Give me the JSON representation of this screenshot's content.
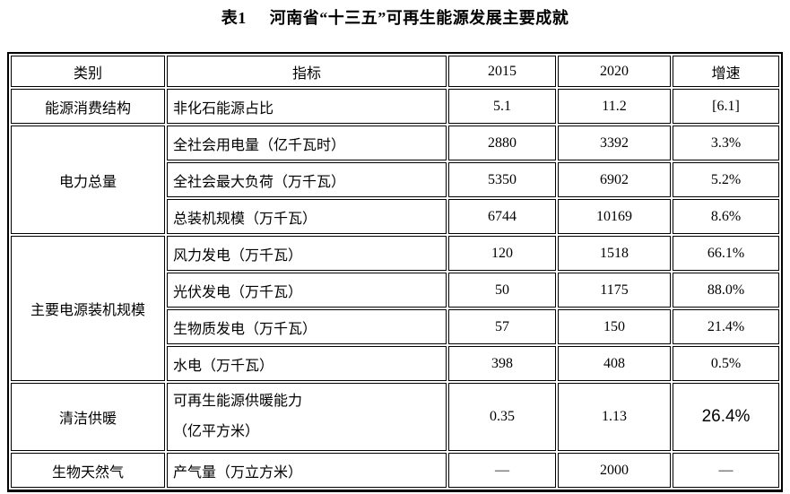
{
  "title": {
    "label": "表1",
    "text": "河南省“十三五”可再生能源发展主要成就"
  },
  "colors": {
    "text": "#000000",
    "border": "#000000",
    "background": "#ffffff"
  },
  "table": {
    "headers": [
      "类别",
      "指标",
      "2015",
      "2020",
      "增速"
    ],
    "groups": [
      {
        "category": "能源消费结构",
        "rows": [
          {
            "indicator": "非化石能源占比",
            "y2015": "5.1",
            "y2020": "11.2",
            "growth": "[6.1]"
          }
        ]
      },
      {
        "category": "电力总量",
        "rows": [
          {
            "indicator": "全社会用电量（亿千瓦时）",
            "y2015": "2880",
            "y2020": "3392",
            "growth": "3.3%"
          },
          {
            "indicator": "全社会最大负荷（万千瓦）",
            "y2015": "5350",
            "y2020": "6902",
            "growth": "5.2%"
          },
          {
            "indicator": "总装机规模（万千瓦）",
            "y2015": "6744",
            "y2020": "10169",
            "growth": "8.6%"
          }
        ]
      },
      {
        "category": "主要电源装机规模",
        "rows": [
          {
            "indicator": "风力发电（万千瓦）",
            "y2015": "120",
            "y2020": "1518",
            "growth": "66.1%"
          },
          {
            "indicator": "光伏发电（万千瓦）",
            "y2015": "50",
            "y2020": "1175",
            "growth": "88.0%"
          },
          {
            "indicator": "生物质发电（万千瓦）",
            "y2015": "57",
            "y2020": "150",
            "growth": "21.4%"
          },
          {
            "indicator": "水电（万千瓦）",
            "y2015": "398",
            "y2020": "408",
            "growth": "0.5%"
          }
        ]
      },
      {
        "category": "清洁供暖",
        "rows": [
          {
            "indicator": "可再生能源供暖能力\n（亿平方米）",
            "y2015": "0.35",
            "y2020": "1.13",
            "growth": "26.4%",
            "tall": true,
            "growth_large": true
          }
        ]
      },
      {
        "category": "生物天然气",
        "rows": [
          {
            "indicator": "产气量（万立方米）",
            "y2015": "—",
            "y2020": "2000",
            "growth": "—"
          }
        ]
      }
    ]
  }
}
